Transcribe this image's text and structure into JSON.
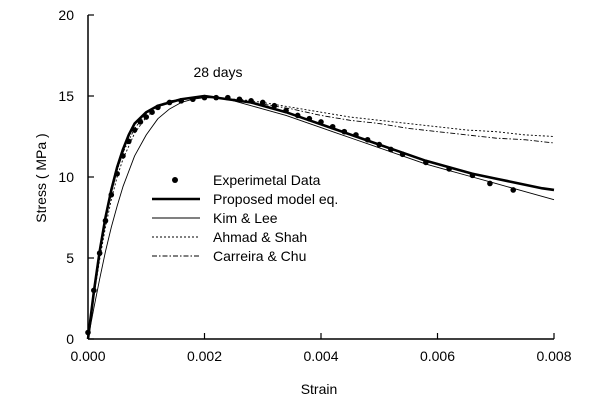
{
  "chart_data": {
    "type": "line",
    "title": "",
    "xlabel": "Strain",
    "ylabel": "Stress ( MPa )",
    "xlim": [
      0,
      0.008
    ],
    "ylim": [
      0,
      20
    ],
    "x_ticks": [
      0,
      0.002,
      0.004,
      0.006,
      0.008
    ],
    "x_tick_labels": [
      "0.000",
      "0.002",
      "0.004",
      "0.006",
      "0.008"
    ],
    "y_ticks": [
      0,
      5,
      10,
      15,
      20
    ],
    "y_tick_labels": [
      "0",
      "5",
      "10",
      "15",
      "20"
    ],
    "grid": false,
    "legend_position": "center-left",
    "annotation": "28 days",
    "series": [
      {
        "name": "Experimetal Data",
        "style": "markers",
        "x": [
          0.0,
          0.0001,
          0.0002,
          0.0003,
          0.0004,
          0.0005,
          0.0006,
          0.0007,
          0.0008,
          0.0009,
          0.001,
          0.0011,
          0.0012,
          0.0014,
          0.0016,
          0.0018,
          0.002,
          0.0022,
          0.0024,
          0.0026,
          0.0028,
          0.003,
          0.0032,
          0.0034,
          0.0036,
          0.0038,
          0.004,
          0.0042,
          0.0044,
          0.0046,
          0.0048,
          0.005,
          0.0052,
          0.0054,
          0.0058,
          0.0062,
          0.0066,
          0.0069,
          0.0073
        ],
        "y": [
          0.4,
          3.0,
          5.3,
          7.3,
          8.9,
          10.2,
          11.3,
          12.2,
          12.9,
          13.4,
          13.7,
          14.0,
          14.3,
          14.6,
          14.7,
          14.8,
          14.9,
          14.9,
          14.9,
          14.8,
          14.7,
          14.6,
          14.4,
          14.1,
          13.8,
          13.6,
          13.4,
          13.1,
          12.8,
          12.6,
          12.3,
          12.0,
          11.7,
          11.4,
          10.9,
          10.5,
          10.1,
          9.6,
          9.2
        ]
      },
      {
        "name": "Proposed model eq.",
        "style": "thick",
        "x": [
          0.0,
          0.0001,
          0.0002,
          0.0003,
          0.0004,
          0.0005,
          0.0006,
          0.0007,
          0.0008,
          0.001,
          0.0012,
          0.0014,
          0.0016,
          0.0018,
          0.002,
          0.0022,
          0.0024,
          0.0026,
          0.0028,
          0.003,
          0.0034,
          0.0038,
          0.0042,
          0.0046,
          0.005,
          0.0054,
          0.0058,
          0.0062,
          0.0066,
          0.007,
          0.0074,
          0.0078,
          0.008
        ],
        "y": [
          0.0,
          2.9,
          5.4,
          7.5,
          9.2,
          10.6,
          11.7,
          12.6,
          13.3,
          14.0,
          14.4,
          14.6,
          14.8,
          14.9,
          15.0,
          14.9,
          14.8,
          14.7,
          14.6,
          14.4,
          14.0,
          13.5,
          13.0,
          12.5,
          12.0,
          11.5,
          11.0,
          10.6,
          10.2,
          9.9,
          9.6,
          9.3,
          9.2
        ]
      },
      {
        "name": "Kim & Lee",
        "style": "thin",
        "x": [
          0.0,
          0.0001,
          0.0002,
          0.0003,
          0.0004,
          0.0005,
          0.0006,
          0.0008,
          0.001,
          0.0012,
          0.0014,
          0.0016,
          0.0018,
          0.002,
          0.0022,
          0.0024,
          0.0026,
          0.003,
          0.0034,
          0.0038,
          0.0042,
          0.0046,
          0.005,
          0.0054,
          0.0058,
          0.0062,
          0.0066,
          0.007,
          0.0074,
          0.0078,
          0.008
        ],
        "y": [
          0.0,
          1.9,
          3.7,
          5.4,
          6.9,
          8.2,
          9.4,
          11.3,
          12.6,
          13.6,
          14.2,
          14.6,
          14.8,
          14.9,
          14.9,
          14.8,
          14.6,
          14.2,
          13.8,
          13.3,
          12.8,
          12.3,
          11.8,
          11.3,
          10.8,
          10.4,
          10.0,
          9.6,
          9.2,
          8.8,
          8.6
        ]
      },
      {
        "name": "Ahmad & Shah",
        "style": "dotted",
        "x": [
          0.0,
          0.0001,
          0.0002,
          0.0003,
          0.0004,
          0.0005,
          0.0006,
          0.0008,
          0.001,
          0.0012,
          0.0014,
          0.0016,
          0.0018,
          0.002,
          0.0022,
          0.0024,
          0.0026,
          0.0028,
          0.003,
          0.0035,
          0.004,
          0.0045,
          0.005,
          0.0055,
          0.006,
          0.0065,
          0.007,
          0.0075,
          0.008
        ],
        "y": [
          0.0,
          2.6,
          4.9,
          6.9,
          8.6,
          10.0,
          11.1,
          12.7,
          13.7,
          14.3,
          14.6,
          14.8,
          14.9,
          14.9,
          14.9,
          14.8,
          14.8,
          14.7,
          14.6,
          14.3,
          14.0,
          13.7,
          13.5,
          13.3,
          13.1,
          12.9,
          12.8,
          12.6,
          12.5
        ]
      },
      {
        "name": "Carreira & Chu",
        "style": "dashdot",
        "x": [
          0.0,
          0.0001,
          0.0002,
          0.0003,
          0.0004,
          0.0005,
          0.0006,
          0.0008,
          0.001,
          0.0012,
          0.0014,
          0.0016,
          0.0018,
          0.002,
          0.0022,
          0.0024,
          0.0026,
          0.0028,
          0.003,
          0.0035,
          0.004,
          0.0045,
          0.005,
          0.0055,
          0.006,
          0.0065,
          0.007,
          0.0075,
          0.008
        ],
        "y": [
          0.0,
          2.8,
          5.2,
          7.3,
          9.0,
          10.4,
          11.5,
          13.0,
          13.9,
          14.4,
          14.7,
          14.8,
          14.9,
          14.9,
          14.9,
          14.8,
          14.7,
          14.6,
          14.5,
          14.2,
          13.8,
          13.5,
          13.3,
          13.0,
          12.8,
          12.6,
          12.4,
          12.3,
          12.1
        ]
      }
    ]
  }
}
